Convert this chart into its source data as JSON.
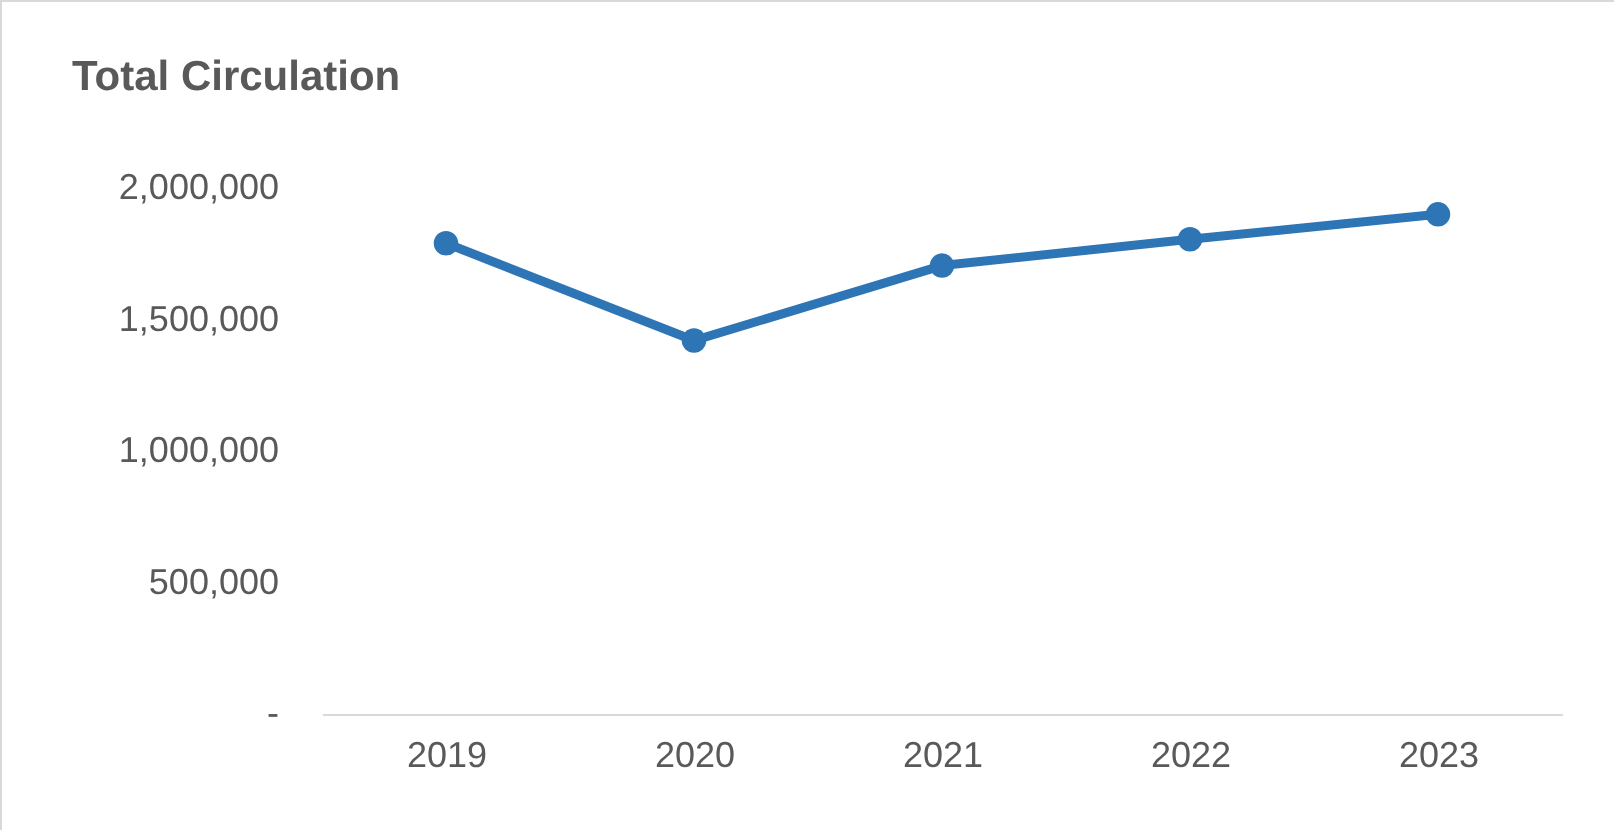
{
  "chart_data": {
    "type": "line",
    "title": "Total Circulation",
    "categories": [
      "2019",
      "2020",
      "2021",
      "2022",
      "2023"
    ],
    "series": [
      {
        "color": "#2e75b6",
        "values": [
          1790000,
          1420000,
          1705000,
          1805000,
          1900000
        ]
      }
    ],
    "ylim": [
      0,
      2000000
    ],
    "yticks": [
      {
        "value": 0,
        "label": "-"
      },
      {
        "value": 500000,
        "label": "500,000"
      },
      {
        "value": 1000000,
        "label": "1,000,000"
      },
      {
        "value": 1500000,
        "label": "1,500,000"
      },
      {
        "value": 2000000,
        "label": "2,000,000"
      }
    ],
    "grid": false,
    "legend": false,
    "marker": "circle",
    "line_style": "solid"
  }
}
